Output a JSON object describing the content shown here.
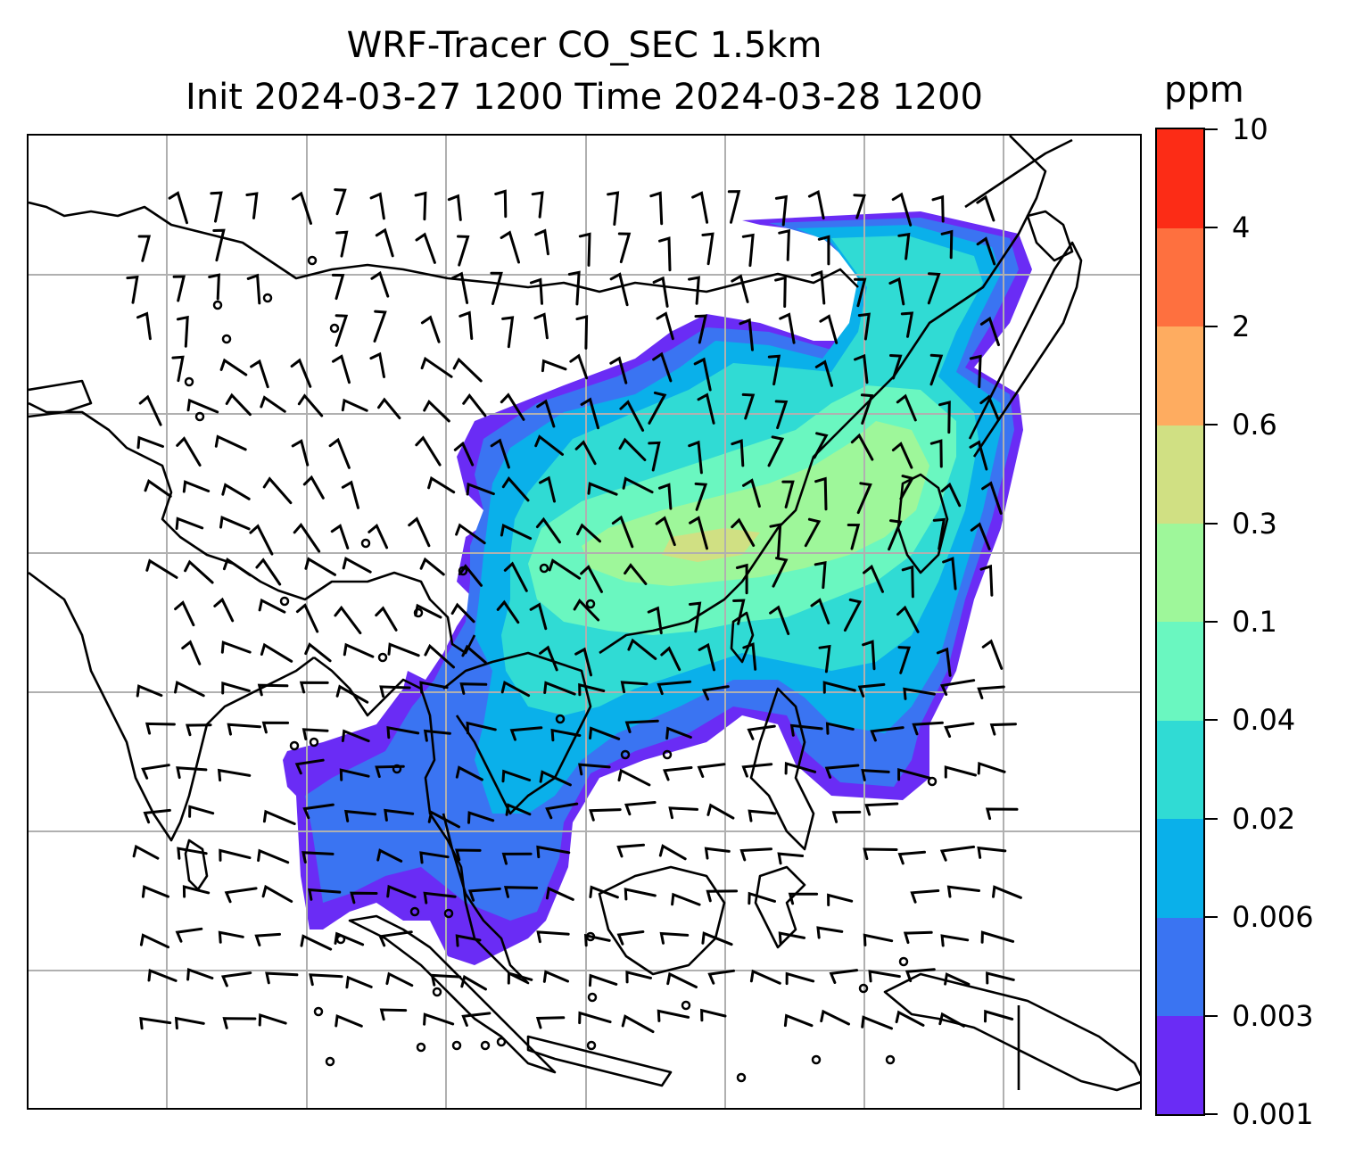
{
  "title": {
    "line1": "WRF-Tracer CO_SEC 1.5km",
    "line2": "Init 2024-03-27 1200 Time 2024-03-28 1200"
  },
  "colorbar": {
    "unit_label": "ppm",
    "levels": [
      "0.001",
      "0.003",
      "0.006",
      "0.02",
      "0.04",
      "0.1",
      "0.3",
      "0.6",
      "2",
      "4",
      "10"
    ],
    "colors": [
      "#6a2cf5",
      "#3a74f2",
      "#0ab0ea",
      "#30dbd4",
      "#6af7c0",
      "#9ef79a",
      "#d0e083",
      "#feac60",
      "#fe703f",
      "#fc2c16"
    ]
  },
  "map": {
    "gridlines": true,
    "overlay": "wind barbs",
    "colors": {
      "coastline": "#000000",
      "grid": "#b0b0b0"
    }
  }
}
